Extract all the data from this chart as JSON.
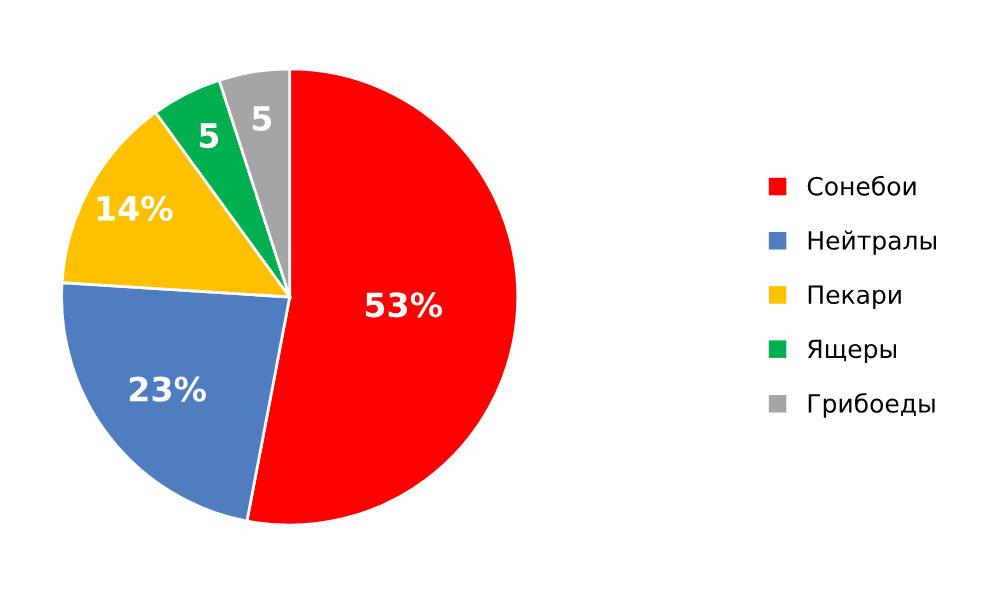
{
  "chart_data": {
    "type": "pie",
    "categories": [
      "Сонебои",
      "Нейтралы",
      "Пекари",
      "Ящеры",
      "Грибоеды"
    ],
    "values": [
      53,
      23,
      14,
      5,
      5
    ],
    "colors": [
      "#ff0000",
      "#4f7dc0",
      "#ffc000",
      "#00b050",
      "#a5a5a5"
    ],
    "value_labels": [
      "53%",
      "23%",
      "14%",
      "5",
      "5"
    ],
    "legend": "right"
  }
}
